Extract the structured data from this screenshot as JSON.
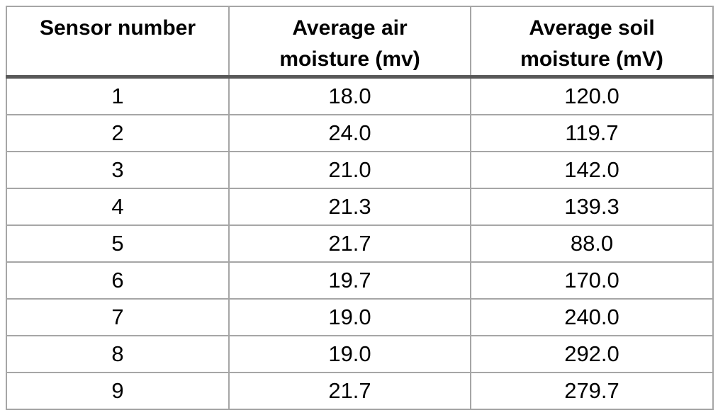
{
  "chart_data": {
    "type": "table",
    "title": "",
    "columns": [
      "Sensor number",
      "Average air moisture (mv)",
      "Average soil moisture (mV)"
    ],
    "rows": [
      [
        "1",
        "18.0",
        "120.0"
      ],
      [
        "2",
        "24.0",
        "119.7"
      ],
      [
        "3",
        "21.0",
        "142.0"
      ],
      [
        "4",
        "21.3",
        "139.3"
      ],
      [
        "5",
        "21.7",
        "88.0"
      ],
      [
        "6",
        "19.7",
        "170.0"
      ],
      [
        "7",
        "19.0",
        "240.0"
      ],
      [
        "8",
        "19.0",
        "292.0"
      ],
      [
        "9",
        "21.7",
        "279.7"
      ]
    ]
  },
  "table": {
    "columns": [
      {
        "label": "Sensor number",
        "lines": [
          "Sensor number",
          ""
        ]
      },
      {
        "label": "Average air moisture (mv)",
        "lines": [
          "Average air",
          "moisture (mv)"
        ]
      },
      {
        "label": "Average soil moisture (mV)",
        "lines": [
          "Average soil",
          "moisture (mV)"
        ]
      }
    ],
    "rows": [
      [
        "1",
        "18.0",
        "120.0"
      ],
      [
        "2",
        "24.0",
        "119.7"
      ],
      [
        "3",
        "21.0",
        "142.0"
      ],
      [
        "4",
        "21.3",
        "139.3"
      ],
      [
        "5",
        "21.7",
        "88.0"
      ],
      [
        "6",
        "19.7",
        "170.0"
      ],
      [
        "7",
        "19.0",
        "240.0"
      ],
      [
        "8",
        "19.0",
        "292.0"
      ],
      [
        "9",
        "21.7",
        "279.7"
      ]
    ]
  },
  "colors": {
    "grid_border": "#a6a6a6",
    "header_rule": "#595959",
    "text": "#000000",
    "background": "#ffffff"
  }
}
